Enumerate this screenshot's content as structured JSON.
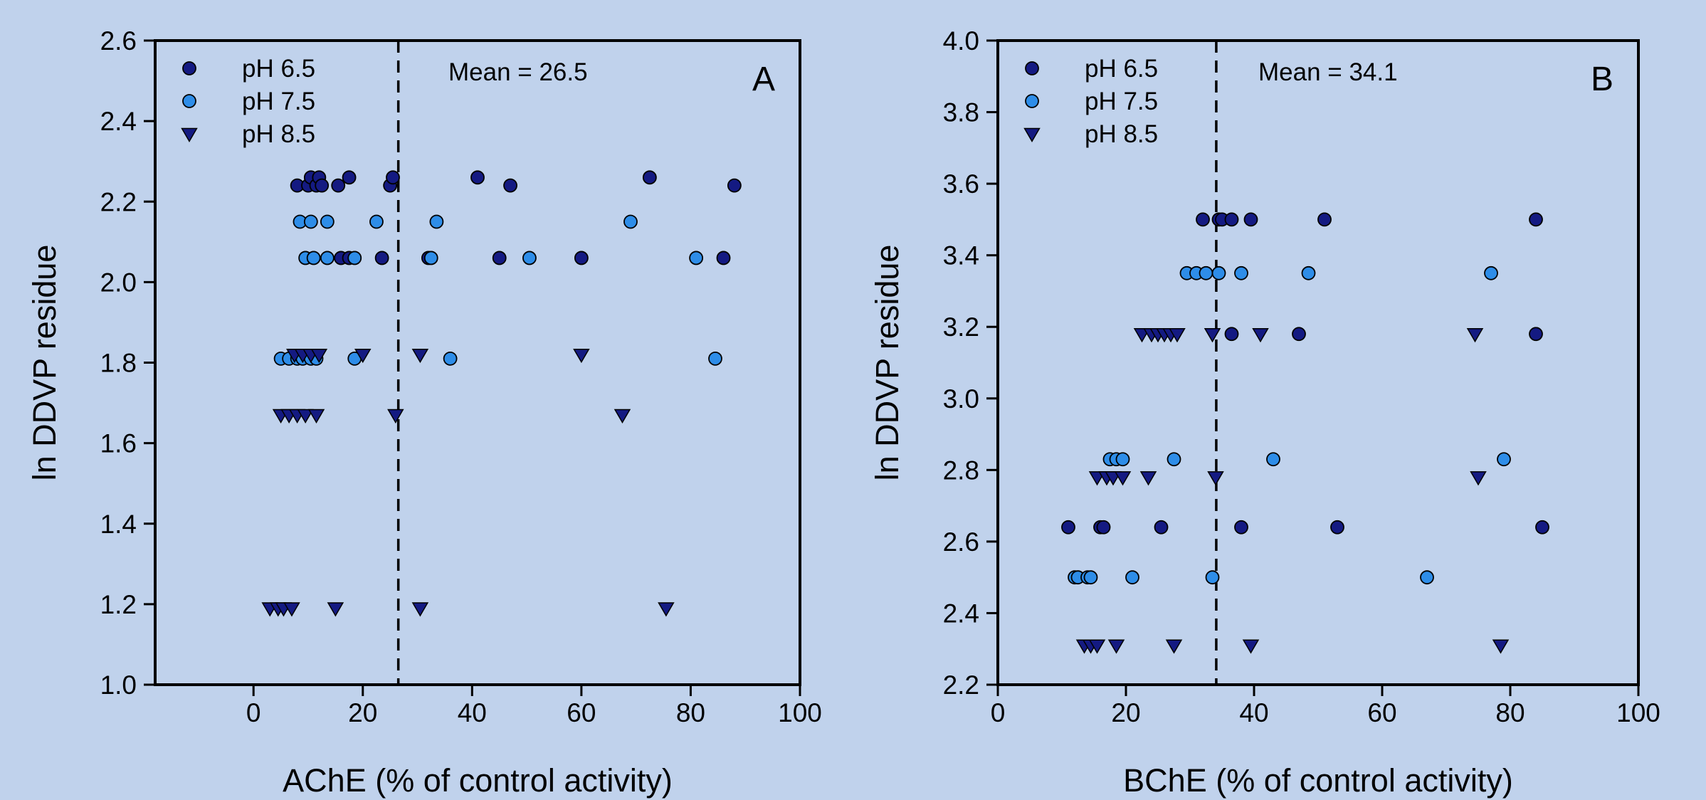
{
  "chart_data": [
    {
      "type": "scatter",
      "panel_label": "A",
      "xlabel": "AChE (% of control activity)",
      "ylabel": "ln DDVP residue",
      "xlim": [
        -18,
        100
      ],
      "ylim": [
        1.0,
        2.6
      ],
      "xticks": [
        0,
        20,
        40,
        60,
        80,
        100
      ],
      "yticks": [
        1.0,
        1.2,
        1.4,
        1.6,
        1.8,
        2.0,
        2.2,
        2.4,
        2.6
      ],
      "ytick_labels": [
        "1.0",
        "1.2",
        "1.4",
        "1.6",
        "1.8",
        "2.0",
        "2.2",
        "2.4",
        "2.6"
      ],
      "grid": false,
      "legend_position": "top-left",
      "mean_line": {
        "x": 26.5,
        "label": "Mean = 26.5"
      },
      "series": [
        {
          "name": "pH 6.5",
          "marker": "circle",
          "color": "#141a82",
          "points": [
            [
              8,
              2.24
            ],
            [
              10,
              2.24
            ],
            [
              10.5,
              2.26
            ],
            [
              11.5,
              2.24
            ],
            [
              12,
              2.26
            ],
            [
              12.5,
              2.24
            ],
            [
              15.5,
              2.24
            ],
            [
              17.5,
              2.26
            ],
            [
              25,
              2.24
            ],
            [
              25.5,
              2.26
            ],
            [
              41,
              2.26
            ],
            [
              47,
              2.24
            ],
            [
              72.5,
              2.26
            ],
            [
              88,
              2.24
            ],
            [
              16,
              2.06
            ],
            [
              17.5,
              2.06
            ],
            [
              23.5,
              2.06
            ],
            [
              32,
              2.06
            ],
            [
              45,
              2.06
            ],
            [
              60,
              2.06
            ],
            [
              86,
              2.06
            ]
          ]
        },
        {
          "name": "pH 7.5",
          "marker": "circle",
          "color": "#2e8de8",
          "points": [
            [
              8.5,
              2.15
            ],
            [
              10.5,
              2.15
            ],
            [
              13.5,
              2.15
            ],
            [
              22.5,
              2.15
            ],
            [
              33.5,
              2.15
            ],
            [
              69,
              2.15
            ],
            [
              9.5,
              2.06
            ],
            [
              11,
              2.06
            ],
            [
              13.5,
              2.06
            ],
            [
              18.5,
              2.06
            ],
            [
              32.5,
              2.06
            ],
            [
              50.5,
              2.06
            ],
            [
              81,
              2.06
            ],
            [
              5,
              1.81
            ],
            [
              6.5,
              1.81
            ],
            [
              8,
              1.81
            ],
            [
              9,
              1.81
            ],
            [
              10.5,
              1.81
            ],
            [
              11.5,
              1.81
            ],
            [
              18.5,
              1.81
            ],
            [
              36,
              1.81
            ],
            [
              84.5,
              1.81
            ]
          ]
        },
        {
          "name": "pH 8.5",
          "marker": "triangle-down",
          "color": "#141a82",
          "points": [
            [
              7.5,
              1.82
            ],
            [
              9,
              1.82
            ],
            [
              10.5,
              1.82
            ],
            [
              12,
              1.82
            ],
            [
              20,
              1.82
            ],
            [
              30.5,
              1.82
            ],
            [
              60,
              1.82
            ],
            [
              5,
              1.67
            ],
            [
              6.5,
              1.67
            ],
            [
              8,
              1.67
            ],
            [
              9.5,
              1.67
            ],
            [
              11.5,
              1.67
            ],
            [
              26,
              1.67
            ],
            [
              67.5,
              1.67
            ],
            [
              3,
              1.19
            ],
            [
              4.5,
              1.19
            ],
            [
              5.5,
              1.19
            ],
            [
              7,
              1.19
            ],
            [
              15,
              1.19
            ],
            [
              30.5,
              1.19
            ],
            [
              75.5,
              1.19
            ]
          ]
        }
      ]
    },
    {
      "type": "scatter",
      "panel_label": "B",
      "xlabel": "BChE (% of control activity)",
      "ylabel": "ln DDVP residue",
      "xlim": [
        0,
        100
      ],
      "ylim": [
        2.2,
        4.0
      ],
      "xticks": [
        0,
        20,
        40,
        60,
        80,
        100
      ],
      "yticks": [
        2.2,
        2.4,
        2.6,
        2.8,
        3.0,
        3.2,
        3.4,
        3.6,
        3.8,
        4.0
      ],
      "ytick_labels": [
        "2.2",
        "2.4",
        "2.6",
        "2.8",
        "3.0",
        "3.2",
        "3.4",
        "3.6",
        "3.8",
        "4.0"
      ],
      "grid": false,
      "legend_position": "top-left",
      "mean_line": {
        "x": 34.1,
        "label": "Mean = 34.1"
      },
      "series": [
        {
          "name": "pH 6.5",
          "marker": "circle",
          "color": "#141a82",
          "points": [
            [
              32,
              3.5
            ],
            [
              34.5,
              3.5
            ],
            [
              35,
              3.5
            ],
            [
              36.5,
              3.5
            ],
            [
              39.5,
              3.5
            ],
            [
              51,
              3.5
            ],
            [
              84,
              3.5
            ],
            [
              36.5,
              3.18
            ],
            [
              47,
              3.18
            ],
            [
              84,
              3.18
            ],
            [
              11,
              2.64
            ],
            [
              16,
              2.64
            ],
            [
              16.5,
              2.64
            ],
            [
              25.5,
              2.64
            ],
            [
              38,
              2.64
            ],
            [
              53,
              2.64
            ],
            [
              85,
              2.64
            ]
          ]
        },
        {
          "name": "pH 7.5",
          "marker": "circle",
          "color": "#2e8de8",
          "points": [
            [
              29.5,
              3.35
            ],
            [
              31,
              3.35
            ],
            [
              32.5,
              3.35
            ],
            [
              34.5,
              3.35
            ],
            [
              38,
              3.35
            ],
            [
              48.5,
              3.35
            ],
            [
              77,
              3.35
            ],
            [
              17.5,
              2.83
            ],
            [
              18.5,
              2.83
            ],
            [
              19.5,
              2.83
            ],
            [
              27.5,
              2.83
            ],
            [
              43,
              2.83
            ],
            [
              79,
              2.83
            ],
            [
              12,
              2.5
            ],
            [
              12.5,
              2.5
            ],
            [
              14,
              2.5
            ],
            [
              14.5,
              2.5
            ],
            [
              21,
              2.5
            ],
            [
              33.5,
              2.5
            ],
            [
              67,
              2.5
            ]
          ]
        },
        {
          "name": "pH 8.5",
          "marker": "triangle-down",
          "color": "#141a82",
          "points": [
            [
              22.5,
              3.18
            ],
            [
              24,
              3.18
            ],
            [
              25,
              3.18
            ],
            [
              26,
              3.18
            ],
            [
              27,
              3.18
            ],
            [
              28,
              3.18
            ],
            [
              33.5,
              3.18
            ],
            [
              41,
              3.18
            ],
            [
              74.5,
              3.18
            ],
            [
              15.5,
              2.78
            ],
            [
              17,
              2.78
            ],
            [
              18,
              2.78
            ],
            [
              19.5,
              2.78
            ],
            [
              23.5,
              2.78
            ],
            [
              34,
              2.78
            ],
            [
              75,
              2.78
            ],
            [
              13.5,
              2.31
            ],
            [
              14.5,
              2.31
            ],
            [
              15.5,
              2.31
            ],
            [
              18.5,
              2.31
            ],
            [
              27.5,
              2.31
            ],
            [
              39.5,
              2.31
            ],
            [
              78.5,
              2.31
            ]
          ]
        }
      ]
    }
  ]
}
